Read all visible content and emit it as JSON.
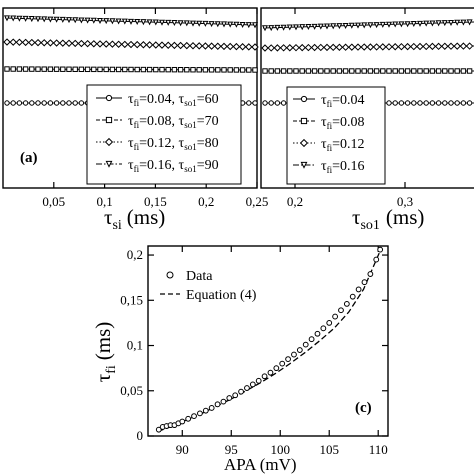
{
  "panels": {
    "a": {
      "tag": "(a)",
      "xlabel_main": "τ",
      "xlabel_sub": "si",
      "xlabel_unit": "(ms)",
      "xticks": [
        {
          "v": 0.05,
          "label": "0,05"
        },
        {
          "v": 0.1,
          "label": "0,1"
        },
        {
          "v": 0.15,
          "label": "0,15"
        },
        {
          "v": 0.2,
          "label": "0,2"
        },
        {
          "v": 0.25,
          "label": "0,25"
        }
      ],
      "legend": [
        {
          "parts": [
            [
              "τ",
              ""
            ],
            [
              "fi",
              "sub"
            ],
            [
              "=0.04, ",
              ""
            ],
            [
              "τ",
              ""
            ],
            [
              "so1",
              "sub"
            ],
            [
              "=60",
              ""
            ]
          ],
          "marker": "circle"
        },
        {
          "parts": [
            [
              "τ",
              ""
            ],
            [
              "fi",
              "sub"
            ],
            [
              "=0.08, ",
              ""
            ],
            [
              "τ",
              ""
            ],
            [
              "so1",
              "sub"
            ],
            [
              "=70",
              ""
            ]
          ],
          "marker": "square"
        },
        {
          "parts": [
            [
              "τ",
              ""
            ],
            [
              "fi",
              "sub"
            ],
            [
              "=0.12, ",
              ""
            ],
            [
              "τ",
              ""
            ],
            [
              "so1",
              "sub"
            ],
            [
              "=80",
              ""
            ]
          ],
          "marker": "diamond"
        },
        {
          "parts": [
            [
              "τ",
              ""
            ],
            [
              "fi",
              "sub"
            ],
            [
              "=0.16, ",
              ""
            ],
            [
              "τ",
              ""
            ],
            [
              "so1",
              "sub"
            ],
            [
              "=90",
              ""
            ]
          ],
          "marker": "triangle"
        }
      ]
    },
    "b": {
      "xlabel_main": "τ",
      "xlabel_sub": "so1",
      "xlabel_unit": "(ms)",
      "xticks": [
        {
          "v": 0.2,
          "label": "0,2"
        },
        {
          "v": 0.3,
          "label": "0,3"
        }
      ],
      "legend": [
        {
          "parts": [
            [
              "τ",
              ""
            ],
            [
              "fi",
              "sub"
            ],
            [
              "=0.04",
              ""
            ]
          ],
          "marker": "circle"
        },
        {
          "parts": [
            [
              "τ",
              ""
            ],
            [
              "fi",
              "sub"
            ],
            [
              "=0.08",
              ""
            ]
          ],
          "marker": "square"
        },
        {
          "parts": [
            [
              "τ",
              ""
            ],
            [
              "fi",
              "sub"
            ],
            [
              "=0.12",
              ""
            ]
          ],
          "marker": "diamond"
        },
        {
          "parts": [
            [
              "τ",
              ""
            ],
            [
              "fi",
              "sub"
            ],
            [
              "=0.16",
              ""
            ]
          ],
          "marker": "triangle"
        }
      ]
    }
  },
  "chart_data": {
    "type": "scatter",
    "tag": "(c)",
    "xlabel": "APA (mV)",
    "ylabel_main": "τ",
    "ylabel_sub": "fi",
    "ylabel_unit": "(ms)",
    "xlim": [
      86.5,
      111
    ],
    "ylim": [
      0,
      0.21
    ],
    "xticks": [
      {
        "v": 90,
        "label": "90"
      },
      {
        "v": 95,
        "label": "95"
      },
      {
        "v": 100,
        "label": "100"
      },
      {
        "v": 105,
        "label": "105"
      },
      {
        "v": 110,
        "label": "110"
      }
    ],
    "yticks": [
      {
        "v": 0,
        "label": "0"
      },
      {
        "v": 0.05,
        "label": "0,05"
      },
      {
        "v": 0.1,
        "label": "0,1"
      },
      {
        "v": 0.15,
        "label": "0,15"
      },
      {
        "v": 0.2,
        "label": "0,2"
      }
    ],
    "legend": [
      {
        "label": "Data",
        "marker": "circle"
      },
      {
        "label": "Equation (4)",
        "marker": "dashed-line"
      }
    ],
    "series": [
      {
        "name": "Data",
        "x": [
          87.6,
          88.0,
          88.4,
          88.8,
          89.2,
          89.6,
          90.0,
          90.6,
          91.2,
          91.8,
          92.4,
          93.0,
          93.6,
          94.2,
          94.8,
          95.4,
          96.0,
          96.6,
          97.2,
          97.8,
          98.4,
          99.0,
          99.6,
          100.2,
          100.8,
          101.4,
          102.0,
          102.6,
          103.2,
          103.8,
          104.4,
          105.0,
          105.6,
          106.2,
          106.8,
          107.4,
          108.0,
          108.6,
          109.2,
          109.8,
          110.2
        ],
        "y": [
          0.007,
          0.01,
          0.011,
          0.012,
          0.012,
          0.014,
          0.016,
          0.019,
          0.022,
          0.025,
          0.028,
          0.031,
          0.035,
          0.038,
          0.042,
          0.045,
          0.049,
          0.053,
          0.057,
          0.061,
          0.066,
          0.07,
          0.075,
          0.08,
          0.085,
          0.09,
          0.095,
          0.101,
          0.107,
          0.113,
          0.119,
          0.125,
          0.132,
          0.139,
          0.146,
          0.154,
          0.162,
          0.17,
          0.179,
          0.195,
          0.206
        ]
      },
      {
        "name": "Equation (4)",
        "x": [
          87.5,
          89.0,
          90.5,
          92.0,
          93.5,
          95.0,
          96.5,
          98.0,
          99.5,
          101.0,
          102.5,
          104.0,
          105.5,
          107.0,
          108.5,
          110.3
        ],
        "y": [
          0.005,
          0.011,
          0.018,
          0.025,
          0.033,
          0.041,
          0.05,
          0.059,
          0.069,
          0.08,
          0.092,
          0.105,
          0.119,
          0.137,
          0.162,
          0.207
        ]
      }
    ]
  }
}
